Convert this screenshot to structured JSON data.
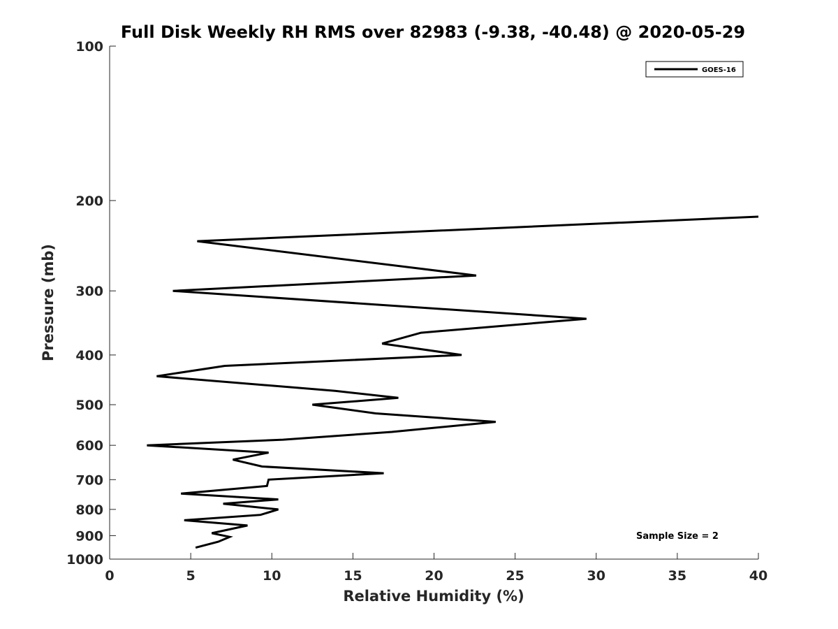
{
  "chart_data": {
    "type": "line",
    "title": "Full Disk Weekly RH RMS over 82983 (-9.38, -40.48) @ 2020-05-29",
    "xlabel": "Relative Humidity (%)",
    "ylabel": "Pressure (mb)",
    "xlim": [
      0,
      40
    ],
    "ylim": [
      100,
      1000
    ],
    "y_scale": "log",
    "y_reversed": true,
    "grid": false,
    "legend_position": "top-right",
    "x_ticks": [
      "0",
      "5",
      "10",
      "15",
      "20",
      "25",
      "30",
      "35",
      "40"
    ],
    "y_ticks": [
      "100",
      "200",
      "300",
      "400",
      "500",
      "600",
      "700",
      "800",
      "900",
      "1000"
    ],
    "series": [
      {
        "name": "GOES-16",
        "color": "#000000",
        "points": [
          [
            40.0,
            215
          ],
          [
            5.4,
            240
          ],
          [
            22.6,
            280
          ],
          [
            3.9,
            300
          ],
          [
            29.4,
            340
          ],
          [
            19.2,
            362
          ],
          [
            16.8,
            380
          ],
          [
            21.7,
            400
          ],
          [
            7.1,
            420
          ],
          [
            2.9,
            440
          ],
          [
            13.9,
            470
          ],
          [
            17.8,
            485
          ],
          [
            12.5,
            500
          ],
          [
            16.4,
            520
          ],
          [
            23.8,
            540
          ],
          [
            17.4,
            565
          ],
          [
            10.7,
            585
          ],
          [
            2.3,
            600
          ],
          [
            9.8,
            620
          ],
          [
            7.6,
            640
          ],
          [
            9.4,
            660
          ],
          [
            16.9,
            680
          ],
          [
            9.8,
            700
          ],
          [
            9.7,
            720
          ],
          [
            4.4,
            745
          ],
          [
            10.4,
            765
          ],
          [
            7.0,
            780
          ],
          [
            10.4,
            800
          ],
          [
            9.3,
            820
          ],
          [
            4.6,
            840
          ],
          [
            8.5,
            860
          ],
          [
            6.3,
            890
          ],
          [
            7.4,
            905
          ],
          [
            6.7,
            925
          ],
          [
            5.3,
            950
          ]
        ]
      }
    ],
    "annotations": [
      "Sample Size = 2"
    ]
  }
}
